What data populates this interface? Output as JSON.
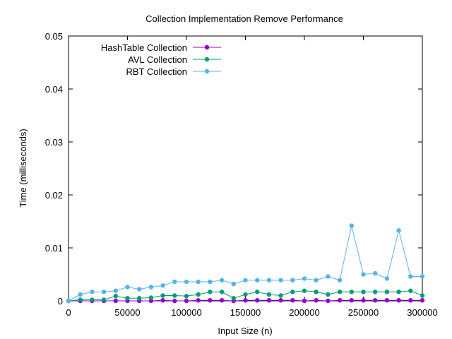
{
  "chart_data": {
    "type": "line",
    "title": "Collection Implementation Remove Performance",
    "xlabel": "Input Size (n)",
    "ylabel": "Time (milliseconds)",
    "xlim": [
      0,
      300000
    ],
    "ylim": [
      0,
      0.05
    ],
    "x_ticks": [
      0,
      50000,
      100000,
      150000,
      200000,
      250000,
      300000
    ],
    "y_ticks": [
      0,
      0.01,
      0.02,
      0.03,
      0.04,
      0.05
    ],
    "x_tick_labels": [
      "0",
      "50000",
      "100000",
      "150000",
      "200000",
      "250000",
      "300000"
    ],
    "y_tick_labels": [
      "0",
      "0.01",
      "0.02",
      "0.03",
      "0.04",
      "0.05"
    ],
    "grid": false,
    "legend_position": "top-left",
    "x": [
      0,
      10000,
      20000,
      30000,
      40000,
      50000,
      60000,
      70000,
      80000,
      90000,
      100000,
      110000,
      120000,
      130000,
      140000,
      150000,
      160000,
      170000,
      180000,
      190000,
      200000,
      210000,
      220000,
      230000,
      240000,
      250000,
      260000,
      270000,
      280000,
      290000,
      300000
    ],
    "series": [
      {
        "name": "HashTable Collection",
        "color": "#9400d3",
        "values": [
          0,
          0,
          0,
          0,
          0,
          0,
          0,
          0,
          0.0001,
          0,
          0,
          0.0001,
          0.0001,
          0.0001,
          0,
          0.0001,
          0.0001,
          0.0001,
          0.0001,
          0.0001,
          0,
          0.0001,
          0,
          0.0001,
          0.0001,
          0.0001,
          0.0001,
          0.0001,
          0.0001,
          0.0001,
          0.0001
        ]
      },
      {
        "name": "AVL Collection",
        "color": "#009e73",
        "values": [
          0,
          0.0002,
          0.0002,
          0.0002,
          0.0009,
          0.0005,
          0.0005,
          0.0006,
          0.001,
          0.001,
          0.0009,
          0.0012,
          0.0017,
          0.0017,
          0.0005,
          0.0012,
          0.0017,
          0.0012,
          0.001,
          0.0017,
          0.0019,
          0.0017,
          0.0012,
          0.0017,
          0.0017,
          0.0017,
          0.0017,
          0.0017,
          0.0017,
          0.0019,
          0.001
        ]
      },
      {
        "name": "RBT Collection",
        "color": "#56b4e9",
        "values": [
          0,
          0.0012,
          0.0017,
          0.0017,
          0.0019,
          0.0026,
          0.0022,
          0.0026,
          0.0029,
          0.0036,
          0.0036,
          0.0036,
          0.0036,
          0.0039,
          0.0032,
          0.0039,
          0.0039,
          0.0039,
          0.0039,
          0.0039,
          0.0042,
          0.0039,
          0.0046,
          0.0039,
          0.0142,
          0.005,
          0.0052,
          0.0042,
          0.0133,
          0.0046,
          0.0046
        ]
      }
    ]
  }
}
